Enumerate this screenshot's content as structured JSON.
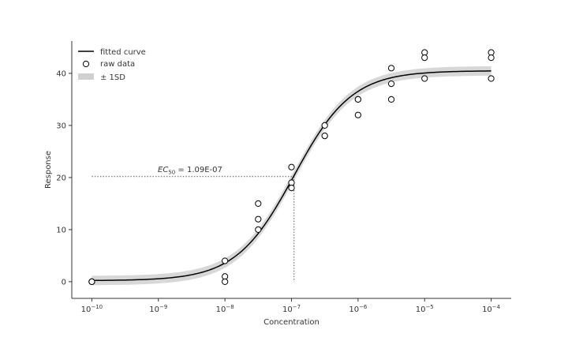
{
  "chart_data": {
    "type": "scatter",
    "xlabel": "Concentration",
    "ylabel": "Response",
    "x_scale": "log",
    "xlim": [
      5e-11,
      0.0002
    ],
    "ylim": [
      -3.2,
      46.2
    ],
    "x_ticks": [
      1e-10,
      1e-09,
      1e-08,
      1e-07,
      1e-06,
      1e-05,
      0.0001
    ],
    "x_tick_labels": [
      {
        "base": "10",
        "exp": "−10"
      },
      {
        "base": "10",
        "exp": "−9"
      },
      {
        "base": "10",
        "exp": "−8"
      },
      {
        "base": "10",
        "exp": "−7"
      },
      {
        "base": "10",
        "exp": "−6"
      },
      {
        "base": "10",
        "exp": "−5"
      },
      {
        "base": "10",
        "exp": "−4"
      }
    ],
    "y_ticks": [
      0,
      10,
      20,
      30,
      40
    ],
    "y_tick_labels": [
      "0",
      "10",
      "20",
      "30",
      "40"
    ],
    "grid": false,
    "legend_position": "top-left",
    "legend": {
      "fitted": "fitted curve",
      "raw": "raw data",
      "band": "± 1SD"
    },
    "fit": {
      "model": "4PL",
      "bottom": 0.2,
      "top": 40.5,
      "ec50": 1.09e-07,
      "hill": 1.0,
      "sd_band": 0.9
    },
    "ec50_label": {
      "prefix": "EC",
      "subscript": "50",
      "suffix": " = 1.09E-07"
    },
    "ec50_guide": {
      "x": 1.09e-07,
      "y": 20.2
    },
    "raw_data": [
      {
        "x": 1e-10,
        "y": 0
      },
      {
        "x": 1e-10,
        "y": 0
      },
      {
        "x": 1e-10,
        "y": 0
      },
      {
        "x": 1e-08,
        "y": 4
      },
      {
        "x": 1e-08,
        "y": 1
      },
      {
        "x": 1e-08,
        "y": 0
      },
      {
        "x": 3.16e-08,
        "y": 15
      },
      {
        "x": 3.16e-08,
        "y": 12
      },
      {
        "x": 3.16e-08,
        "y": 10
      },
      {
        "x": 1e-07,
        "y": 22
      },
      {
        "x": 1e-07,
        "y": 19
      },
      {
        "x": 1e-07,
        "y": 18
      },
      {
        "x": 3.16e-07,
        "y": 30
      },
      {
        "x": 3.16e-07,
        "y": 28
      },
      {
        "x": 3.16e-07,
        "y": 28
      },
      {
        "x": 1e-06,
        "y": 35
      },
      {
        "x": 1e-06,
        "y": 35
      },
      {
        "x": 1e-06,
        "y": 32
      },
      {
        "x": 3.16e-06,
        "y": 41
      },
      {
        "x": 3.16e-06,
        "y": 38
      },
      {
        "x": 3.16e-06,
        "y": 35
      },
      {
        "x": 1e-05,
        "y": 44
      },
      {
        "x": 1e-05,
        "y": 43
      },
      {
        "x": 1e-05,
        "y": 39
      },
      {
        "x": 0.0001,
        "y": 44
      },
      {
        "x": 0.0001,
        "y": 43
      },
      {
        "x": 0.0001,
        "y": 39
      }
    ],
    "colors": {
      "line": "#000000",
      "band": "#d0d0d0",
      "marker_edge": "#000000",
      "marker_face": "#ffffff",
      "guide": "#808080",
      "axis": "#333333"
    }
  }
}
